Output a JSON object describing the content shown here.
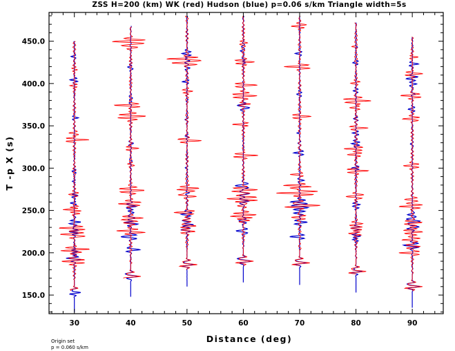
{
  "chart_data": {
    "type": "line",
    "title": "ZSS H=200 (km) WK (red) Hudson (blue) p=0.06 s/km Triangle width=5s",
    "xlabel": "Distance (deg)",
    "ylabel": "T -p X (s)",
    "xlim": [
      25.5,
      95.5
    ],
    "ylim": [
      128.0,
      484.0
    ],
    "x_ticks": [
      30,
      40,
      50,
      60,
      70,
      80,
      90
    ],
    "x_tick_labels": [
      "30",
      "40",
      "50",
      "60",
      "70",
      "80",
      "90"
    ],
    "y_ticks": [
      150,
      200,
      250,
      300,
      350,
      400,
      450
    ],
    "y_tick_labels": [
      "150.0",
      "200.0",
      "250.0",
      "300.0",
      "350.0",
      "400.0",
      "450.0"
    ],
    "note_lines": [
      "Origin set",
      "p = 0.060 s/km"
    ],
    "colors": {
      "wk": "#ff0000",
      "hudson": "#0000cc",
      "axis": "#000000"
    },
    "series": [
      {
        "name": "WK",
        "color": "#ff0000",
        "traces": [
          {
            "distance": 30,
            "t_start": 155,
            "t_end": 450,
            "first_arrival": 153
          },
          {
            "distance": 40,
            "t_start": 170,
            "t_end": 467,
            "first_arrival": 172
          },
          {
            "distance": 50,
            "t_start": 180,
            "t_end": 480,
            "first_arrival": 186
          },
          {
            "distance": 60,
            "t_start": 185,
            "t_end": 480,
            "first_arrival": 190
          },
          {
            "distance": 70,
            "t_start": 185,
            "t_end": 480,
            "first_arrival": 188
          },
          {
            "distance": 80,
            "t_start": 175,
            "t_end": 472,
            "first_arrival": 178
          },
          {
            "distance": 90,
            "t_start": 155,
            "t_end": 455,
            "first_arrival": 160
          }
        ]
      },
      {
        "name": "Hudson",
        "color": "#0000cc",
        "traces": [
          {
            "distance": 30,
            "t_start": 130,
            "t_end": 450,
            "first_arrival": 153
          },
          {
            "distance": 40,
            "t_start": 148,
            "t_end": 468,
            "first_arrival": 172
          },
          {
            "distance": 50,
            "t_start": 160,
            "t_end": 480,
            "first_arrival": 186
          },
          {
            "distance": 60,
            "t_start": 165,
            "t_end": 480,
            "first_arrival": 190
          },
          {
            "distance": 70,
            "t_start": 162,
            "t_end": 480,
            "first_arrival": 188
          },
          {
            "distance": 80,
            "t_start": 153,
            "t_end": 472,
            "first_arrival": 178
          },
          {
            "distance": 90,
            "t_start": 135,
            "t_end": 455,
            "first_arrival": 160
          }
        ]
      }
    ]
  }
}
